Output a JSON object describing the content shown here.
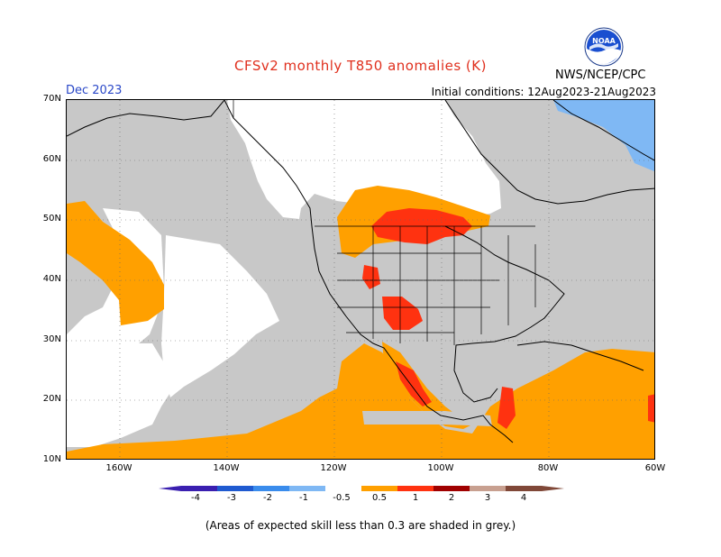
{
  "header": {
    "title": "CFSv2 monthly T850 anomalies (K)",
    "month": "Dec 2023",
    "initial_conditions": "Initial conditions: 12Aug2023-21Aug2023",
    "agency": "NWS/NCEP/CPC",
    "logo_text": "NOAA"
  },
  "axes": {
    "lat_labels": [
      "70N",
      "60N",
      "50N",
      "40N",
      "30N",
      "20N",
      "10N"
    ],
    "lon_labels": [
      "160W",
      "140W",
      "120W",
      "100W",
      "80W",
      "60W"
    ]
  },
  "colorbar": {
    "tick_labels": [
      "-4",
      "-3",
      "-2",
      "-1",
      "-0.5",
      "0.5",
      "1",
      "2",
      "3",
      "4"
    ],
    "colors": [
      "#3a1fb0",
      "#1f5ad0",
      "#3a8cec",
      "#7fb8f4",
      "#ffffff",
      "#ffa000",
      "#ff3210",
      "#a00000",
      "#c8a090",
      "#804838"
    ]
  },
  "legend_colors": {
    "low_skill": "#c8c8c8",
    "anom_0_5_1": "#ffa000",
    "anom_1_2": "#ff3210",
    "anom_neg_0_5_1": "#7fb8f4"
  },
  "footer": {
    "note": "(Areas of expected skill less than 0.3 are shaded in grey.)"
  }
}
